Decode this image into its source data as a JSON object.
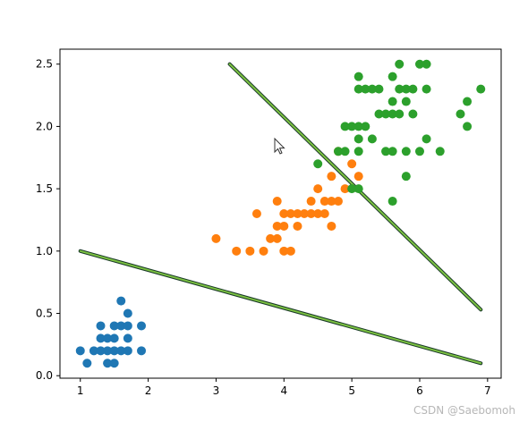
{
  "chart_data": {
    "type": "scatter",
    "title": "",
    "xlabel": "",
    "ylabel": "",
    "xlim": [
      0.7,
      7.2
    ],
    "ylim": [
      -0.02,
      2.62
    ],
    "xticks": [
      "1",
      "2",
      "3",
      "4",
      "5",
      "6",
      "7"
    ],
    "yticks": [
      "0.0",
      "0.5",
      "1.0",
      "1.5",
      "2.0",
      "2.5"
    ],
    "grid": false,
    "colors": {
      "series0": "#1f77b4",
      "series1": "#ff7f0e",
      "series2": "#2ca02c",
      "boundary_main": "#7cc242",
      "boundary_edge": "#1a3a28"
    },
    "series": [
      {
        "points": [
          [
            1.0,
            0.2
          ],
          [
            1.1,
            0.1
          ],
          [
            1.2,
            0.2
          ],
          [
            1.3,
            0.2
          ],
          [
            1.3,
            0.3
          ],
          [
            1.3,
            0.4
          ],
          [
            1.4,
            0.1
          ],
          [
            1.4,
            0.2
          ],
          [
            1.4,
            0.3
          ],
          [
            1.5,
            0.1
          ],
          [
            1.5,
            0.2
          ],
          [
            1.5,
            0.3
          ],
          [
            1.5,
            0.4
          ],
          [
            1.6,
            0.2
          ],
          [
            1.6,
            0.4
          ],
          [
            1.6,
            0.6
          ],
          [
            1.7,
            0.2
          ],
          [
            1.7,
            0.3
          ],
          [
            1.7,
            0.4
          ],
          [
            1.7,
            0.5
          ],
          [
            1.9,
            0.2
          ],
          [
            1.9,
            0.4
          ]
        ]
      },
      {
        "points": [
          [
            3.0,
            1.1
          ],
          [
            3.3,
            1.0
          ],
          [
            3.5,
            1.0
          ],
          [
            3.6,
            1.3
          ],
          [
            3.7,
            1.0
          ],
          [
            3.8,
            1.1
          ],
          [
            3.9,
            1.1
          ],
          [
            3.9,
            1.2
          ],
          [
            3.9,
            1.4
          ],
          [
            4.0,
            1.0
          ],
          [
            4.0,
            1.2
          ],
          [
            4.0,
            1.3
          ],
          [
            4.1,
            1.0
          ],
          [
            4.1,
            1.3
          ],
          [
            4.2,
            1.2
          ],
          [
            4.2,
            1.3
          ],
          [
            4.3,
            1.3
          ],
          [
            4.4,
            1.3
          ],
          [
            4.4,
            1.4
          ],
          [
            4.5,
            1.3
          ],
          [
            4.5,
            1.5
          ],
          [
            4.6,
            1.3
          ],
          [
            4.6,
            1.4
          ],
          [
            4.7,
            1.2
          ],
          [
            4.7,
            1.4
          ],
          [
            4.7,
            1.6
          ],
          [
            4.8,
            1.4
          ],
          [
            4.8,
            1.8
          ],
          [
            4.9,
            1.5
          ],
          [
            5.0,
            1.7
          ],
          [
            5.1,
            1.6
          ]
        ]
      },
      {
        "points": [
          [
            4.5,
            1.7
          ],
          [
            4.8,
            1.8
          ],
          [
            4.9,
            1.8
          ],
          [
            4.9,
            2.0
          ],
          [
            5.0,
            1.5
          ],
          [
            5.0,
            2.0
          ],
          [
            5.1,
            1.5
          ],
          [
            5.1,
            1.8
          ],
          [
            5.1,
            1.9
          ],
          [
            5.1,
            2.0
          ],
          [
            5.1,
            2.3
          ],
          [
            5.1,
            2.4
          ],
          [
            5.2,
            2.0
          ],
          [
            5.2,
            2.3
          ],
          [
            5.3,
            1.9
          ],
          [
            5.3,
            2.3
          ],
          [
            5.4,
            2.1
          ],
          [
            5.4,
            2.3
          ],
          [
            5.5,
            1.8
          ],
          [
            5.5,
            2.1
          ],
          [
            5.6,
            1.8
          ],
          [
            5.6,
            2.1
          ],
          [
            5.6,
            2.2
          ],
          [
            5.6,
            2.4
          ],
          [
            5.6,
            1.4
          ],
          [
            5.7,
            2.1
          ],
          [
            5.7,
            2.3
          ],
          [
            5.7,
            2.5
          ],
          [
            5.8,
            1.8
          ],
          [
            5.8,
            2.2
          ],
          [
            5.8,
            2.3
          ],
          [
            5.9,
            2.1
          ],
          [
            5.9,
            2.3
          ],
          [
            6.0,
            1.8
          ],
          [
            6.0,
            2.5
          ],
          [
            6.1,
            1.9
          ],
          [
            6.1,
            2.3
          ],
          [
            6.1,
            2.5
          ],
          [
            6.3,
            1.8
          ],
          [
            6.6,
            2.1
          ],
          [
            6.7,
            2.0
          ],
          [
            6.7,
            2.2
          ],
          [
            6.9,
            2.3
          ],
          [
            5.8,
            1.6
          ]
        ]
      }
    ],
    "boundaries": [
      {
        "from": [
          1.0,
          1.0
        ],
        "to": [
          6.9,
          0.1
        ]
      },
      {
        "from": [
          3.2,
          2.5
        ],
        "to": [
          6.9,
          0.53
        ]
      }
    ]
  },
  "watermark": "CSDN @Saebomoh"
}
